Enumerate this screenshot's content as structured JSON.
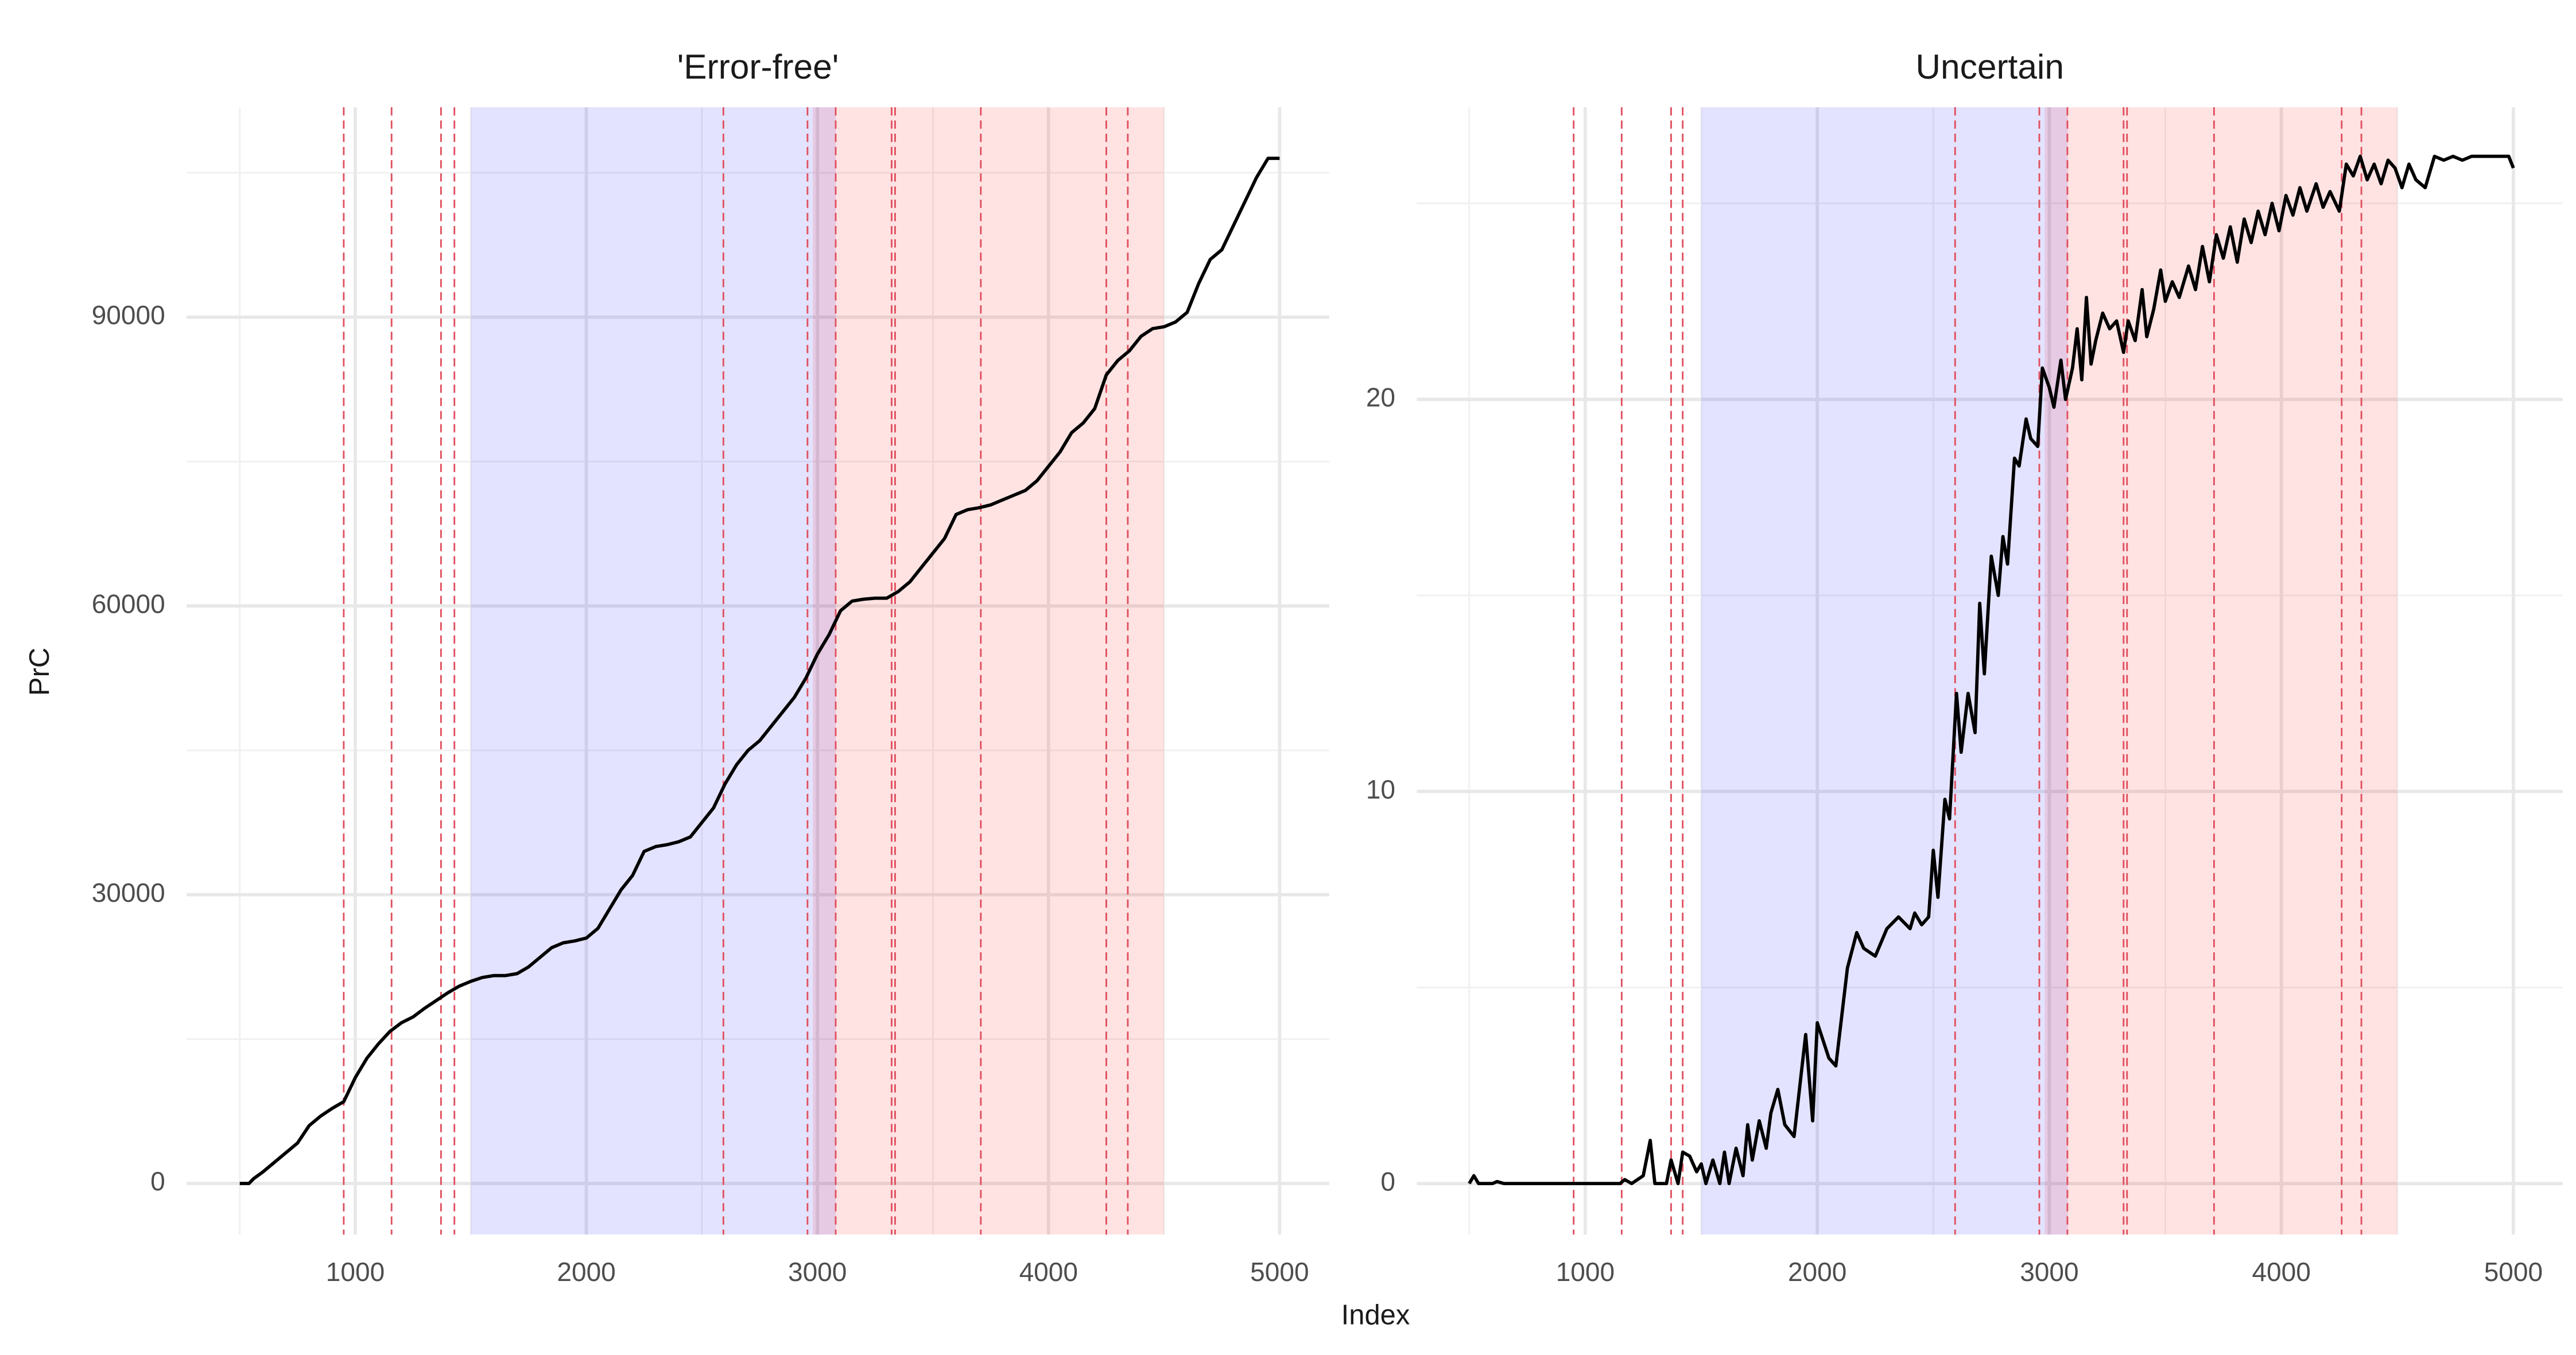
{
  "x_label": "Index",
  "y_label": "PrC",
  "chart_data": [
    {
      "type": "line",
      "title": "'Error-free'",
      "xlim": [
        270,
        5215
      ],
      "ylim": [
        -5300,
        111800
      ],
      "xticks": [
        1000,
        2000,
        3000,
        4000,
        5000
      ],
      "x_minor_ticks": [
        500,
        1500,
        2500,
        3500,
        4500
      ],
      "yticks": [
        0,
        30000,
        60000,
        90000
      ],
      "y_minor_ticks": [
        15000,
        45000,
        75000,
        105000
      ],
      "grid": true,
      "color": "#000000",
      "regions": [
        {
          "start": 1500,
          "end": 3080,
          "color": "#0000ff1c"
        },
        {
          "start": 2980,
          "end": 4500,
          "color": "#ff00001c"
        }
      ],
      "vlines": [
        950,
        1157,
        1371,
        1429,
        2593,
        2957,
        3079,
        3321,
        3336,
        3707,
        4250,
        4343
      ],
      "vline_color": "#e0505f",
      "x": [
        500,
        540,
        560,
        600,
        650,
        700,
        750,
        800,
        850,
        900,
        950,
        970,
        1000,
        1050,
        1100,
        1150,
        1200,
        1250,
        1300,
        1350,
        1400,
        1450,
        1500,
        1550,
        1600,
        1650,
        1700,
        1750,
        1800,
        1850,
        1900,
        1950,
        2000,
        2050,
        2100,
        2150,
        2200,
        2250,
        2300,
        2350,
        2400,
        2450,
        2500,
        2550,
        2600,
        2650,
        2700,
        2750,
        2800,
        2850,
        2900,
        2950,
        3000,
        3050,
        3100,
        3150,
        3200,
        3250,
        3300,
        3350,
        3400,
        3450,
        3500,
        3550,
        3600,
        3650,
        3700,
        3750,
        3800,
        3850,
        3900,
        3950,
        4000,
        4050,
        4100,
        4150,
        4200,
        4250,
        4300,
        4350,
        4400,
        4450,
        4500,
        4550,
        4600,
        4650,
        4700,
        4750,
        4800,
        4850,
        4900,
        4950,
        5000
      ],
      "values": [
        0,
        0,
        500,
        1200,
        2200,
        3200,
        4200,
        6000,
        7000,
        7800,
        8500,
        9500,
        11000,
        13000,
        14500,
        15800,
        16700,
        17300,
        18200,
        19000,
        19800,
        20500,
        21000,
        21400,
        21600,
        21600,
        21800,
        22500,
        23500,
        24500,
        25000,
        25200,
        25500,
        26500,
        28500,
        30500,
        32000,
        34500,
        35000,
        35200,
        35500,
        36000,
        37500,
        39000,
        41500,
        43500,
        45000,
        46000,
        47500,
        49000,
        50500,
        52500,
        55000,
        57000,
        59500,
        60500,
        60700,
        60800,
        60800,
        61500,
        62500,
        64000,
        65500,
        67000,
        69500,
        70000,
        70200,
        70500,
        71000,
        71500,
        72000,
        73000,
        74500,
        76000,
        78000,
        79000,
        80500,
        84000,
        85500,
        86500,
        88000,
        88800,
        89000,
        89500,
        90500,
        93500,
        96000,
        97000,
        99500,
        102000,
        104500,
        106500,
        106500
      ]
    },
    {
      "type": "line",
      "title": "Uncertain",
      "xlim": [
        274,
        5213
      ],
      "ylim": [
        -1.3,
        27.45
      ],
      "xticks": [
        1000,
        2000,
        3000,
        4000,
        5000
      ],
      "x_minor_ticks": [
        500,
        1500,
        2500,
        3500,
        4500
      ],
      "yticks": [
        0,
        10,
        20
      ],
      "y_minor_ticks": [
        5,
        15,
        25
      ],
      "grid": true,
      "color": "#000000",
      "regions": [
        {
          "start": 1500,
          "end": 3080,
          "color": "#0000ff1c"
        },
        {
          "start": 2980,
          "end": 4500,
          "color": "#ff00001c"
        }
      ],
      "vlines": [
        950,
        1157,
        1370,
        1420,
        2594,
        2957,
        3078,
        3320,
        3335,
        3710,
        4260,
        4345
      ],
      "vline_color": "#e0505f",
      "x": [
        500,
        520,
        540,
        600,
        620,
        650,
        1100,
        1150,
        1170,
        1200,
        1250,
        1280,
        1300,
        1350,
        1370,
        1400,
        1420,
        1450,
        1480,
        1500,
        1520,
        1550,
        1580,
        1600,
        1620,
        1650,
        1680,
        1700,
        1720,
        1750,
        1780,
        1800,
        1830,
        1860,
        1900,
        1950,
        1980,
        2000,
        2050,
        2080,
        2130,
        2170,
        2200,
        2250,
        2300,
        2350,
        2400,
        2420,
        2450,
        2480,
        2500,
        2520,
        2550,
        2570,
        2600,
        2620,
        2650,
        2680,
        2700,
        2720,
        2750,
        2780,
        2800,
        2820,
        2850,
        2870,
        2900,
        2920,
        2950,
        2970,
        3000,
        3020,
        3050,
        3070,
        3100,
        3120,
        3140,
        3160,
        3180,
        3200,
        3230,
        3260,
        3290,
        3320,
        3340,
        3370,
        3400,
        3420,
        3450,
        3480,
        3500,
        3530,
        3560,
        3600,
        3630,
        3660,
        3690,
        3720,
        3750,
        3780,
        3810,
        3840,
        3870,
        3900,
        3930,
        3960,
        3990,
        4020,
        4050,
        4080,
        4110,
        4150,
        4180,
        4210,
        4250,
        4280,
        4310,
        4340,
        4370,
        4400,
        4430,
        4460,
        4490,
        4520,
        4550,
        4580,
        4620,
        4660,
        4700,
        4740,
        4780,
        4820,
        4900,
        4980,
        5000
      ],
      "values": [
        0,
        0.2,
        0,
        0,
        0.05,
        0,
        0,
        0,
        0.1,
        0,
        0.2,
        1.1,
        0,
        0,
        0.6,
        0,
        0.8,
        0.7,
        0.3,
        0.5,
        0,
        0.6,
        0,
        0.8,
        0,
        0.9,
        0.2,
        1.5,
        0.6,
        1.6,
        0.9,
        1.8,
        2.4,
        1.5,
        1.2,
        3.8,
        1.6,
        4.1,
        3.2,
        3.0,
        5.5,
        6.4,
        6.0,
        5.8,
        6.5,
        6.8,
        6.5,
        6.9,
        6.6,
        6.8,
        8.5,
        7.3,
        9.8,
        9.3,
        12.5,
        11.0,
        12.5,
        11.5,
        14.8,
        13.0,
        16.0,
        15.0,
        16.5,
        15.8,
        18.5,
        18.3,
        19.5,
        19.0,
        18.8,
        20.8,
        20.3,
        19.8,
        21.0,
        20.0,
        20.8,
        21.8,
        20.5,
        22.6,
        20.9,
        21.5,
        22.2,
        21.8,
        22.0,
        21.2,
        22.0,
        21.5,
        22.8,
        21.6,
        22.3,
        23.3,
        22.5,
        23.0,
        22.6,
        23.4,
        22.8,
        23.9,
        23.0,
        24.2,
        23.6,
        24.4,
        23.5,
        24.6,
        24.0,
        24.8,
        24.2,
        25.0,
        24.3,
        25.2,
        24.7,
        25.4,
        24.8,
        25.5,
        24.9,
        25.3,
        24.8,
        26.0,
        25.7,
        26.2,
        25.6,
        26.0,
        25.5,
        26.1,
        25.9,
        25.4,
        26.0,
        25.6,
        25.4,
        26.2,
        26.1,
        26.2,
        26.1,
        26.2,
        26.2,
        26.2,
        25.9
      ]
    }
  ]
}
